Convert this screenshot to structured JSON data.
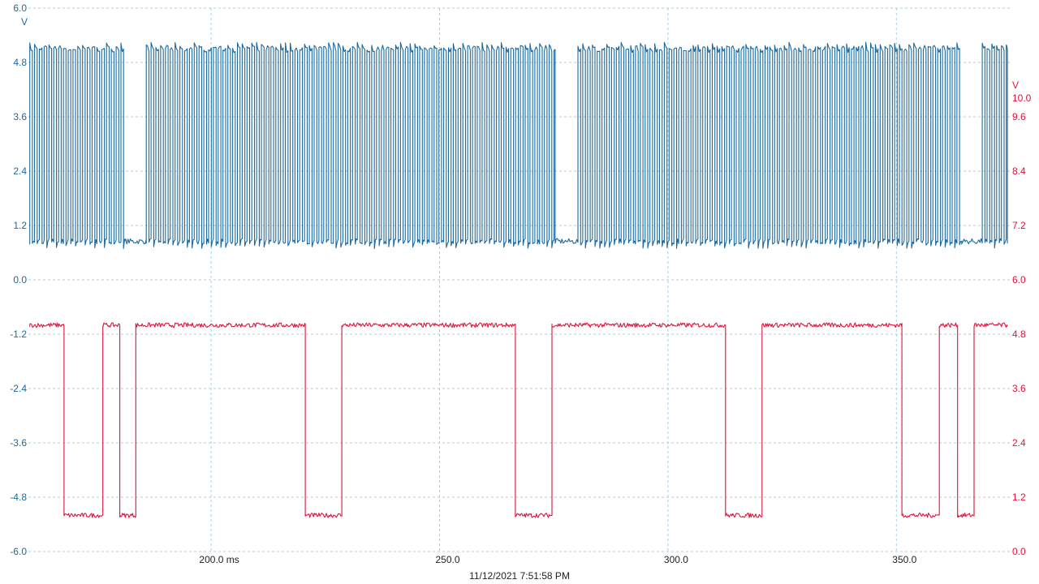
{
  "timestamp": "11/12/2021 7:51:58 PM",
  "colors": {
    "channel_a": "#1a6aa0",
    "channel_b": "#e0123a",
    "grid": "#a9cfe0",
    "text": "#222222"
  },
  "chart_data": {
    "type": "line",
    "title": "",
    "grid": true,
    "x_axis": {
      "range": [
        160,
        375
      ],
      "ticks": [
        200,
        250,
        300,
        350
      ],
      "tick_labels": [
        "200.0 ms",
        "250.0",
        "300.0",
        "350.0"
      ]
    },
    "y_axis_left": {
      "unit": "V",
      "range": [
        -6.0,
        6.0
      ],
      "ticks": [
        6.0,
        4.8,
        3.6,
        2.4,
        1.2,
        0.0,
        -1.2,
        -2.4,
        -3.6,
        -4.8,
        -6.0
      ],
      "tick_labels": [
        "6.0",
        "4.8",
        "3.6",
        "2.4",
        "1.2",
        "0.0",
        "-1.2",
        "-2.4",
        "-3.6",
        "-4.8",
        "-6.0"
      ]
    },
    "y_axis_right": {
      "unit": "V",
      "range": [
        0.0,
        12.0
      ],
      "ticks": [
        10.0,
        9.6,
        8.4,
        7.2,
        6.0,
        4.8,
        3.6,
        2.4,
        1.2,
        0.0
      ],
      "tick_labels": [
        "10.0",
        "9.6",
        "8.4",
        "7.2",
        "6.0",
        "4.8",
        "3.6",
        "2.4",
        "1.2",
        "0.0"
      ]
    },
    "series": [
      {
        "axis": "left",
        "high": 5.1,
        "low": 0.85,
        "segments": [
          {
            "type": "pulses",
            "start": 160.3,
            "end": 181.3
          },
          {
            "type": "low",
            "start": 181.3,
            "end": 185.8
          },
          {
            "type": "pulses",
            "start": 185.8,
            "end": 275.3
          },
          {
            "type": "low",
            "start": 275.3,
            "end": 280.3
          },
          {
            "type": "pulses",
            "start": 280.3,
            "end": 364.3
          },
          {
            "type": "low",
            "start": 364.3,
            "end": 368.8
          },
          {
            "type": "pulses",
            "start": 368.8,
            "end": 374.3
          }
        ],
        "period": 1.05
      },
      {
        "axis": "right",
        "high": 5.0,
        "low": 0.8,
        "start": 160.3,
        "end": 374.3,
        "transitions": [
          [
            167.8,
            "low"
          ],
          [
            176.3,
            "high"
          ],
          [
            180.0,
            "low"
          ],
          [
            183.5,
            "high"
          ],
          [
            220.6,
            "low"
          ],
          [
            228.6,
            "high"
          ],
          [
            266.6,
            "low"
          ],
          [
            274.6,
            "high"
          ],
          [
            312.6,
            "low"
          ],
          [
            320.6,
            "high"
          ],
          [
            351.2,
            "low"
          ],
          [
            359.4,
            "high"
          ],
          [
            363.4,
            "low"
          ],
          [
            367.0,
            "high"
          ]
        ]
      }
    ]
  }
}
